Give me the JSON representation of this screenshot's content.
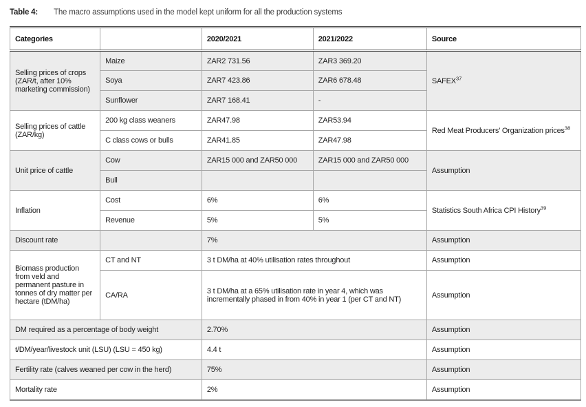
{
  "page": {
    "title_label": "Table 4:",
    "title_text": "The macro assumptions used in the model kept uniform for all the production systems"
  },
  "colors": {
    "row_shade": "#ececec",
    "rule_dark": "#4f4f4f",
    "grid_line": "#a6a6a6"
  },
  "table": {
    "headers": [
      "Categories",
      "",
      "2020/2021",
      "2021/2022",
      "Source"
    ],
    "col_widths_pct": [
      15.8,
      17.8,
      19.5,
      19.9,
      27.0
    ],
    "rows": [
      {
        "shade": true,
        "cells": [
          {
            "t": "Selling prices of crops (ZAR/t, after 10% marketing commission)",
            "rs": 3
          },
          {
            "t": "Maize"
          },
          {
            "t": "ZAR2 731.56"
          },
          {
            "t": "ZAR3 369.20"
          },
          {
            "t": "SAFEX",
            "sup": "37",
            "rs": 3
          }
        ]
      },
      {
        "shade": true,
        "cells": [
          {
            "t": "Soya"
          },
          {
            "t": "ZAR7 423.86"
          },
          {
            "t": "ZAR6 678.48"
          }
        ]
      },
      {
        "shade": true,
        "cells": [
          {
            "t": "Sunflower"
          },
          {
            "t": "ZAR7 168.41"
          },
          {
            "t": "-"
          }
        ]
      },
      {
        "shade": false,
        "cells": [
          {
            "t": "Selling prices of cattle (ZAR/kg)",
            "rs": 2
          },
          {
            "t": "200 kg class weaners"
          },
          {
            "t": "ZAR47.98"
          },
          {
            "t": "ZAR53.94"
          },
          {
            "t": "Red Meat Producers’ Organization prices",
            "sup": "38",
            "rs": 2
          }
        ]
      },
      {
        "shade": false,
        "cells": [
          {
            "t": "C class cows or bulls"
          },
          {
            "t": "ZAR41.85"
          },
          {
            "t": "ZAR47.98"
          }
        ]
      },
      {
        "shade": true,
        "cells": [
          {
            "t": "Unit price of cattle",
            "rs": 2
          },
          {
            "t": "Cow"
          },
          {
            "t": "ZAR15 000 and ZAR50 000"
          },
          {
            "t": "ZAR15 000 and ZAR50 000"
          },
          {
            "t": "Assumption",
            "rs": 2
          }
        ]
      },
      {
        "shade": true,
        "cells": [
          {
            "t": "Bull"
          },
          {
            "t": ""
          },
          {
            "t": ""
          }
        ]
      },
      {
        "shade": false,
        "cells": [
          {
            "t": "Inflation",
            "rs": 2
          },
          {
            "t": "Cost"
          },
          {
            "t": "6%"
          },
          {
            "t": "6%"
          },
          {
            "t": "Statistics South Africa CPI History",
            "sup": "39",
            "rs": 2
          }
        ]
      },
      {
        "shade": false,
        "cells": [
          {
            "t": "Revenue"
          },
          {
            "t": "5%"
          },
          {
            "t": "5%"
          }
        ]
      },
      {
        "shade": true,
        "cells": [
          {
            "t": "Discount rate"
          },
          {
            "t": ""
          },
          {
            "t": "7%",
            "cs": 2
          },
          {
            "t": "Assumption"
          }
        ]
      },
      {
        "shade": false,
        "cells": [
          {
            "t": "Biomass production from veld and permanent pasture in tonnes of dry matter per hectare (tDM/ha)",
            "rs": 2
          },
          {
            "t": "CT and NT"
          },
          {
            "t": "3 t DM/ha at 40% utilisation rates throughout",
            "cs": 2
          },
          {
            "t": "Assumption"
          }
        ]
      },
      {
        "shade": false,
        "h": 72,
        "cells": [
          {
            "t": "CA/RA"
          },
          {
            "t": "3 t DM/ha at a 65% utilisation rate in year 4, which was incrementally phased in from 40% in year 1 (per CT and NT)",
            "cs": 2
          },
          {
            "t": "Assumption"
          }
        ]
      },
      {
        "shade": true,
        "cells": [
          {
            "t": "DM required as a percentage of body weight",
            "cs": 2
          },
          {
            "t": "2.70%",
            "cs": 2
          },
          {
            "t": "Assumption"
          }
        ]
      },
      {
        "shade": false,
        "cells": [
          {
            "t": "t/DM/year/livestock unit (LSU) (LSU = 450 kg)",
            "cs": 2
          },
          {
            "t": "4.4 t",
            "cs": 2
          },
          {
            "t": "Assumption"
          }
        ]
      },
      {
        "shade": true,
        "cells": [
          {
            "t": "Fertility rate (calves weaned per cow in the herd)",
            "cs": 2
          },
          {
            "t": "75%",
            "cs": 2
          },
          {
            "t": "Assumption"
          }
        ]
      },
      {
        "shade": false,
        "cells": [
          {
            "t": "Mortality rate",
            "cs": 2
          },
          {
            "t": "2%",
            "cs": 2
          },
          {
            "t": "Assumption"
          }
        ]
      }
    ]
  }
}
